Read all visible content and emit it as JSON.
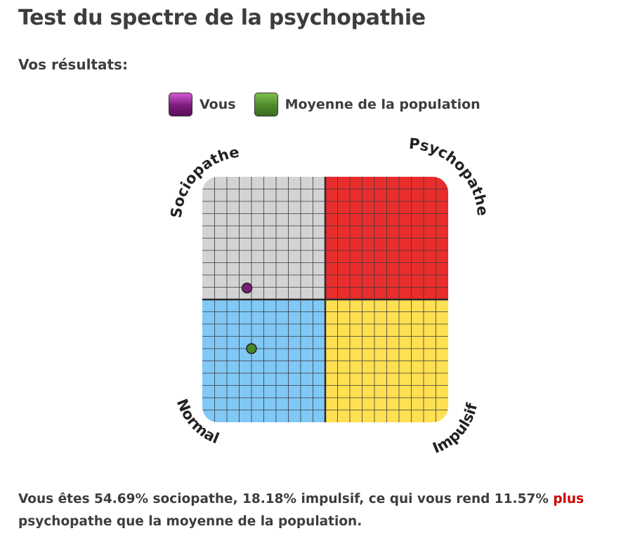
{
  "header": {
    "title": "Test du spectre de la psychopathie"
  },
  "results_heading": "Vos résultats:",
  "legend": {
    "you": "Vous",
    "average": "Moyenne de la population"
  },
  "quadrant_labels": {
    "top_left": "Sociopathe",
    "top_right": "Psychopathe",
    "bottom_left": "Normal",
    "bottom_right": "Impulsif"
  },
  "colors": {
    "sociopathe": "#d3d3d3",
    "psychopathe": "#e82d2d",
    "normal": "#80c8f6",
    "impulsif": "#ffe052",
    "you_marker": "#7a1e76",
    "average_marker": "#4a862a",
    "emphasis": "#cc0000"
  },
  "summary": {
    "before": "Vous êtes 54.69% sociopathe, 18.18% impulsif, ce qui vous rend 11.57% ",
    "emphasis": "plus",
    "after": " psychopathe que la moyenne de la population."
  },
  "chart_data": {
    "type": "scatter",
    "quadrants": [
      "Sociopathe",
      "Psychopathe",
      "Normal",
      "Impulsif"
    ],
    "points": [
      {
        "name": "Vous",
        "impulsif": 18.18,
        "sociopathe": 54.69
      },
      {
        "name": "Moyenne de la population",
        "impulsif": 20,
        "sociopathe": 30
      }
    ],
    "xlim": [
      0,
      100
    ],
    "ylim": [
      0,
      100
    ],
    "grid": true
  }
}
